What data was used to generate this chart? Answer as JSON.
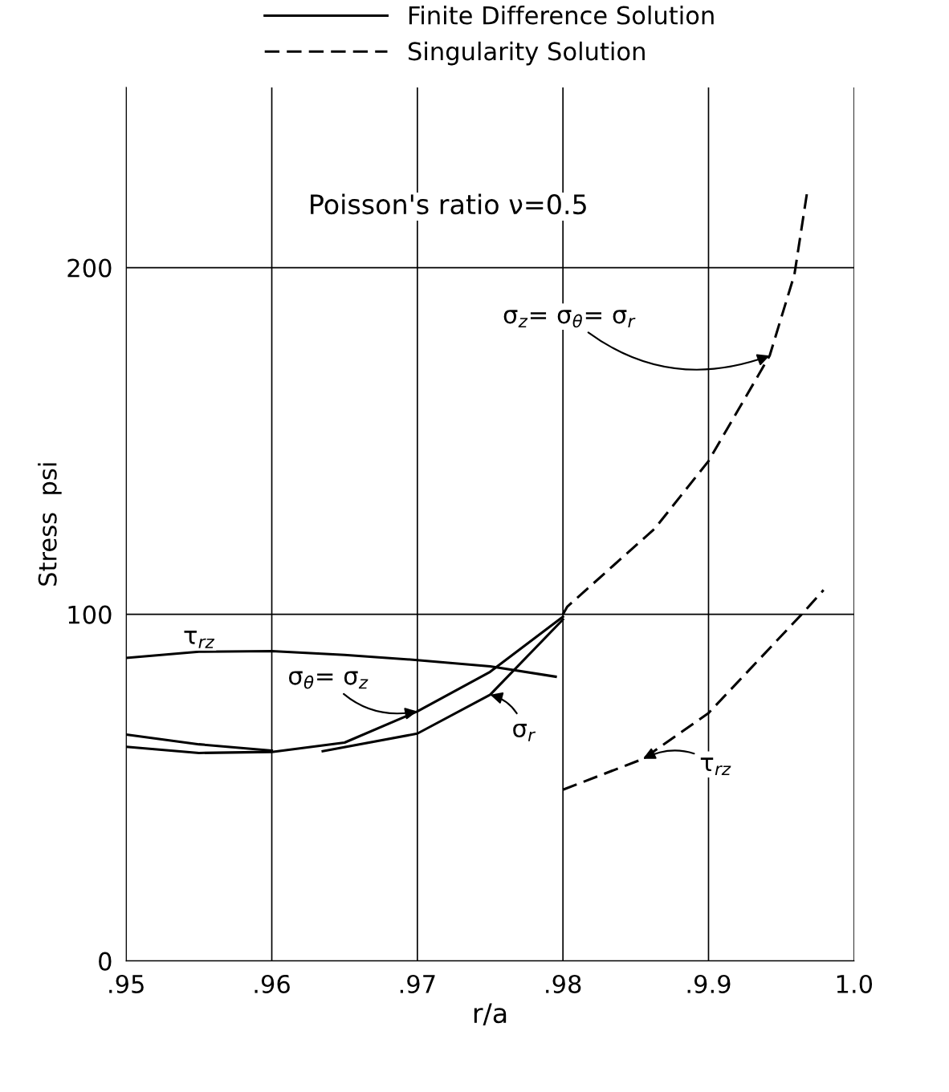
{
  "chart_data": {
    "type": "line",
    "xlabel": "r/a",
    "ylabel": "Stress  psi",
    "xlim": [
      0.95,
      1.0
    ],
    "xticks": [
      {
        "value": 0.95,
        "label": ".95"
      },
      {
        "value": 0.96,
        "label": ".96"
      },
      {
        "value": 0.97,
        "label": ".97"
      },
      {
        "value": 0.98,
        "label": ".98"
      },
      {
        "value": 0.99,
        "label": ".9.9"
      },
      {
        "value": 1.0,
        "label": "1.0"
      }
    ],
    "ylim": [
      0,
      252
    ],
    "yticks": [
      0,
      100,
      200
    ],
    "grid": true,
    "legend": "top",
    "series": [
      {
        "name": "Finite Difference Solution",
        "color": "#000000",
        "line_style": "solid",
        "x": [
          0.95,
          0.955,
          0.96,
          0.965,
          0.97,
          0.975,
          0.9795
        ],
        "values": [
          87.4,
          89.2,
          89.4,
          88.3,
          86.8,
          85,
          82
        ]
      },
      {
        "color": "#000000",
        "line_style": "solid",
        "x": [
          0.95,
          0.955,
          0.96,
          0.965,
          0.97,
          0.975,
          0.98
        ],
        "values": [
          61.8,
          60,
          60.3,
          63,
          72,
          83.4,
          99.3
        ]
      },
      {
        "color": "#000000",
        "line_style": "solid",
        "x": [
          0.95,
          0.955,
          0.96,
          0.961,
          0.9635,
          0.97,
          0.975,
          0.98
        ],
        "values": [
          65.3,
          62.5,
          60.7,
          null,
          60.5,
          65.6,
          76.8,
          98.5
        ]
      },
      {
        "name": "Singularity Solution",
        "color": "#000000",
        "line_style": "dashed",
        "x": [
          0.98,
          0.9803,
          0.9863,
          0.99,
          0.9942,
          0.9959,
          0.9968
        ],
        "values": [
          100,
          102.2,
          124.7,
          144.2,
          174.6,
          198,
          222.5
        ]
      },
      {
        "color": "#000000",
        "line_style": "dashed",
        "x": [
          0.98,
          0.9855,
          0.99,
          0.9964,
          0.9979
        ],
        "values": [
          49.4,
          58.3,
          71.5,
          100,
          107
        ]
      }
    ],
    "annotations": [
      "Poisson's ratio ν=0.5",
      {
        "text": "σ$_{z}$= σ$_{θ}$= σ$_{r}$",
        "x": 0.9942,
        "y": 174.6
      },
      {
        "text": "σ$_{θ}$= σ$_{z}$",
        "x": 0.97,
        "y": 72
      },
      {
        "text": "σ$_{r}$",
        "x": 0.975,
        "y": 76.8
      },
      {
        "text": "τ$_{rz}$",
        "x": 0.955,
        "y": 89.5
      },
      {
        "text": "τ$_{rz}$",
        "x": 0.9855,
        "y": 58.3
      }
    ]
  }
}
